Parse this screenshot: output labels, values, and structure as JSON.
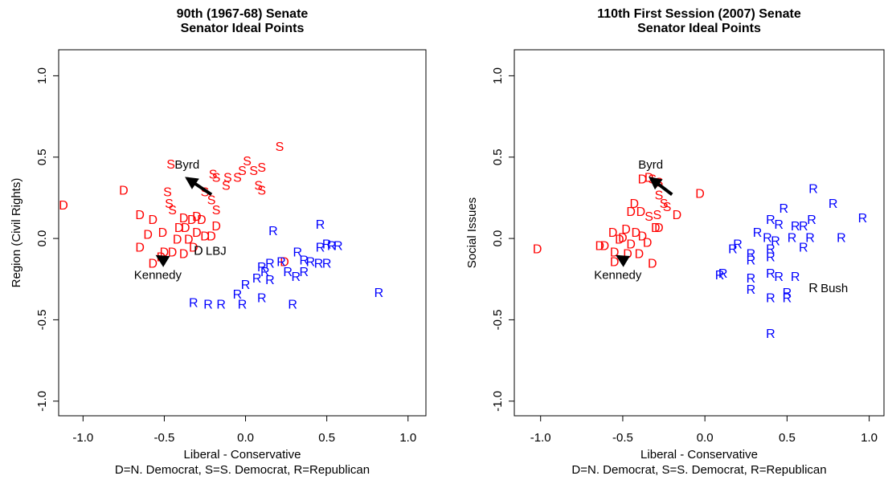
{
  "chart_data": [
    {
      "type": "scatter",
      "title": [
        "90th (1967-68) Senate",
        "Senator Ideal Points"
      ],
      "xlabel": "Liberal - Conservative",
      "ylabel": "Region (Civil Rights)",
      "caption": "D=N. Democrat, S=S. Democrat, R=Republican",
      "xlim": [
        -1.15,
        1.11
      ],
      "ylim": [
        -1.09,
        1.16
      ],
      "xticks": [
        {
          "value": -1,
          "label": "-1.0"
        },
        -0.5,
        {
          "value": 0,
          "label": "0.0"
        },
        0.5,
        {
          "value": 1,
          "label": "1.0"
        }
      ],
      "yticks": [
        {
          "value": -1,
          "label": "-1.0"
        },
        -0.5,
        {
          "value": 0,
          "label": "0.0"
        },
        0.5,
        {
          "value": 1,
          "label": "1.0"
        }
      ],
      "series": [
        {
          "name": "D",
          "color": "#ff0000",
          "x": [
            -1.12,
            -0.75,
            -0.65,
            -0.57,
            -0.6,
            -0.51,
            -0.65,
            -0.57,
            -0.5,
            -0.42,
            -0.38,
            -0.37,
            -0.35,
            -0.3,
            -0.27,
            -0.25,
            -0.21,
            -0.18,
            -0.32,
            -0.38,
            -0.41,
            -0.33,
            -0.3,
            -0.45,
            -0.52,
            0.24
          ],
          "y": [
            0.2,
            0.29,
            0.14,
            0.11,
            0.02,
            0.03,
            -0.06,
            -0.16,
            -0.09,
            -0.01,
            0.12,
            0.06,
            -0.01,
            0.03,
            0.11,
            0.01,
            0.01,
            0.07,
            -0.06,
            -0.1,
            0.06,
            0.11,
            0.13,
            -0.09,
            -0.12,
            -0.15
          ]
        },
        {
          "name": "S",
          "color": "#ff0000",
          "x": [
            0.21,
            -0.46,
            0.01,
            0.1,
            0.05,
            -0.02,
            -0.05,
            -0.11,
            -0.18,
            -0.12,
            -0.2,
            0.08,
            0.1,
            -0.48,
            -0.47,
            -0.21,
            -0.18,
            -0.45,
            -0.25
          ],
          "y": [
            0.56,
            0.45,
            0.47,
            0.43,
            0.41,
            0.41,
            0.37,
            0.37,
            0.37,
            0.32,
            0.39,
            0.32,
            0.29,
            0.28,
            0.21,
            0.23,
            0.17,
            0.17,
            0.28
          ]
        },
        {
          "name": "R",
          "color": "#0000ff",
          "x": [
            0.46,
            0.17,
            0.53,
            0.5,
            0.57,
            0.46,
            0.32,
            0.36,
            0.45,
            0.5,
            0.22,
            0.1,
            0.12,
            0.15,
            0.07,
            0,
            -0.05,
            -0.02,
            0.1,
            -0.32,
            -0.23,
            -0.15,
            0.29,
            0.82,
            0.26,
            0.31,
            0.36,
            0.4,
            0.15
          ],
          "y": [
            0.08,
            0.04,
            -0.05,
            -0.04,
            -0.05,
            -0.06,
            -0.09,
            -0.14,
            -0.16,
            -0.16,
            -0.15,
            -0.18,
            -0.21,
            -0.26,
            -0.25,
            -0.29,
            -0.35,
            -0.41,
            -0.37,
            -0.4,
            -0.41,
            -0.41,
            -0.41,
            -0.34,
            -0.21,
            -0.24,
            -0.21,
            -0.15,
            -0.16
          ]
        },
        {
          "name": "D",
          "color": "#000000",
          "label": "LBJ",
          "x": [
            -0.29
          ],
          "y": [
            -0.08
          ]
        }
      ],
      "arrows": [
        {
          "label": "Byrd",
          "x0": -0.21,
          "y0": 0.27,
          "x1": -0.36,
          "y1": 0.37
        },
        {
          "label": "Kennedy",
          "x0": -0.49,
          "y0": -0.14,
          "x1": -0.54,
          "y1": -0.11
        }
      ]
    },
    {
      "type": "scatter",
      "title": [
        "110th First Session (2007) Senate",
        "Senator Ideal Points"
      ],
      "xlabel": "Liberal - Conservative",
      "ylabel": "Social Issues",
      "caption": "D=N. Democrat, S=S. Democrat, R=Republican",
      "xlim": [
        -1.16,
        1.09
      ],
      "ylim": [
        -1.09,
        1.16
      ],
      "xticks": [
        {
          "value": -1,
          "label": "-1.0"
        },
        -0.5,
        {
          "value": 0,
          "label": "0.0"
        },
        0.5,
        {
          "value": 1,
          "label": "1.0"
        }
      ],
      "yticks": [
        {
          "value": -1,
          "label": "-1.0"
        },
        -0.5,
        {
          "value": 0,
          "label": "0.0"
        },
        0.5,
        {
          "value": 1,
          "label": "1.0"
        }
      ],
      "series": [
        {
          "name": "D",
          "color": "#ff0000",
          "x": [
            -1.02,
            -0.64,
            -0.61,
            -0.56,
            -0.52,
            -0.48,
            -0.42,
            -0.38,
            -0.35,
            -0.32,
            -0.45,
            -0.39,
            -0.38,
            -0.34,
            -0.43,
            -0.3,
            -0.28,
            -0.03,
            -0.17,
            -0.55,
            -0.47,
            -0.4,
            -0.55,
            -0.5,
            -0.45
          ],
          "y": [
            -0.07,
            -0.05,
            -0.05,
            0.03,
            -0.01,
            0.05,
            0.03,
            0.01,
            -0.03,
            -0.16,
            0.16,
            0.16,
            0.36,
            0.37,
            0.21,
            0.06,
            0.06,
            0.27,
            0.14,
            -0.09,
            -0.1,
            -0.1,
            -0.15,
            0,
            -0.04
          ]
        },
        {
          "name": "S",
          "color": "#ff0000",
          "x": [
            -0.28,
            -0.25,
            -0.23,
            -0.29,
            -0.34,
            -0.28,
            -0.32
          ],
          "y": [
            0.26,
            0.21,
            0.19,
            0.14,
            0.13,
            0.34,
            0.36
          ]
        },
        {
          "name": "R",
          "color": "#0000ff",
          "x": [
            0.66,
            0.78,
            0.96,
            0.48,
            0.4,
            0.45,
            0.55,
            0.6,
            0.65,
            0.32,
            0.38,
            0.43,
            0.53,
            0.64,
            0.83,
            0.2,
            0.17,
            0.28,
            0.4,
            0.6,
            0.4,
            0.28,
            0.28,
            0.28,
            0.4,
            0.45,
            0.55,
            0.5,
            0.5,
            0.4,
            0.4,
            0.09,
            0.11
          ],
          "y": [
            0.3,
            0.21,
            0.12,
            0.18,
            0.11,
            0.08,
            0.07,
            0.07,
            0.11,
            0.03,
            0,
            -0.02,
            0,
            0,
            0,
            -0.04,
            -0.07,
            -0.1,
            -0.07,
            -0.06,
            -0.12,
            -0.14,
            -0.25,
            -0.32,
            -0.22,
            -0.24,
            -0.24,
            -0.34,
            -0.37,
            -0.37,
            -0.59,
            -0.23,
            -0.22
          ]
        },
        {
          "name": "R",
          "color": "#000000",
          "label": "Bush",
          "x": [
            0.66
          ],
          "y": [
            -0.31
          ]
        }
      ],
      "arrows": [
        {
          "label": "Byrd",
          "x0": -0.2,
          "y0": 0.27,
          "x1": -0.33,
          "y1": 0.37
        },
        {
          "label": "Kennedy",
          "x0": -0.48,
          "y0": -0.14,
          "x1": -0.53,
          "y1": -0.11
        }
      ]
    }
  ]
}
